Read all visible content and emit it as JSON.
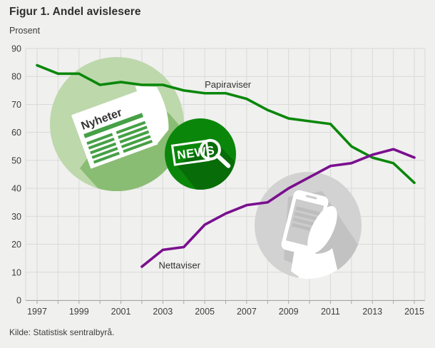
{
  "chart_data": {
    "type": "line",
    "title": "Figur 1. Andel avislesere",
    "ylabel": "Prosent",
    "xlabel": "",
    "source": "Kilde: Statistisk sentralbyrå.",
    "ylim": [
      0,
      90
    ],
    "xlim": [
      1997,
      2015
    ],
    "y_ticks": [
      0,
      10,
      20,
      30,
      40,
      50,
      60,
      70,
      80,
      90
    ],
    "x_tick_labels": [
      1997,
      1999,
      2001,
      2003,
      2005,
      2007,
      2009,
      2011,
      2013,
      2015
    ],
    "grid": true,
    "grid_color": "#d9d9d9",
    "axis_color": "#a6a6a6",
    "tick_label_color": "#3d3d3d",
    "legend_position": "inline-labels",
    "series": [
      {
        "name": "Papiraviser",
        "color": "#0a870a",
        "x": [
          1997,
          1998,
          1999,
          2000,
          2001,
          2002,
          2003,
          2004,
          2005,
          2006,
          2007,
          2008,
          2009,
          2010,
          2011,
          2012,
          2013,
          2014,
          2015
        ],
        "values": [
          84,
          81,
          81,
          77,
          78,
          77,
          77,
          75,
          74,
          74,
          72,
          68,
          65,
          64,
          63,
          55,
          51,
          49,
          42
        ],
        "label": {
          "text": "Papiraviser",
          "x": 2005.0,
          "y": 76.0
        }
      },
      {
        "name": "Nettaviser",
        "color": "#7a0f8e",
        "x": [
          2002,
          2003,
          2004,
          2005,
          2006,
          2007,
          2008,
          2009,
          2010,
          2011,
          2012,
          2013,
          2014,
          2015
        ],
        "values": [
          12,
          18,
          19,
          27,
          31,
          34,
          35,
          40,
          44,
          48,
          49,
          52,
          54,
          51
        ],
        "label": {
          "text": "Nettaviser",
          "x": 2002.8,
          "y": 11.3
        }
      }
    ]
  },
  "decorations": {
    "newspaper": {
      "label": "Nyheter",
      "circle_color": "#bdd8ab",
      "shadow_color": "#8abd74",
      "ink_color": "#46a046"
    },
    "news_badge": {
      "label": "NEWS",
      "circle_color": "#0a870a",
      "shadow_color": "#086c08"
    },
    "phone": {
      "circle_color": "#d2d2d2",
      "shadow_color": "#c2c2c2",
      "screen_color": "#cccccc",
      "screen_line_color": "#bdbdbd"
    }
  }
}
